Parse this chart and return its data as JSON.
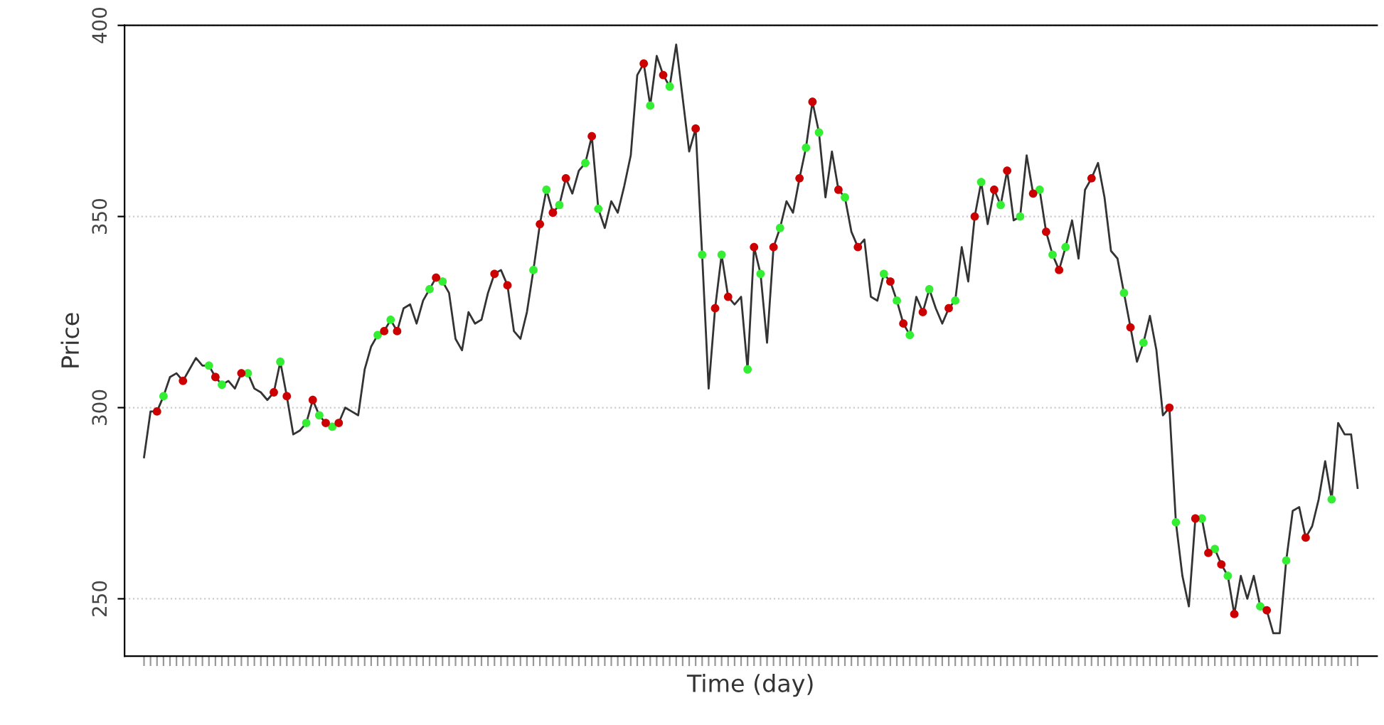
{
  "chart_data": {
    "type": "line",
    "xlabel": "Time (day)",
    "ylabel": "Price",
    "ylim": [
      235,
      400
    ],
    "yticks": [
      250,
      300,
      350,
      400
    ],
    "grid": "y",
    "tick_labels": "y",
    "categories": [
      null,
      null,
      null,
      null,
      null,
      null,
      null,
      null,
      null,
      null,
      null,
      null,
      null,
      null,
      null,
      null,
      null,
      null,
      null,
      null,
      null,
      null,
      null,
      null,
      null,
      null,
      null,
      null,
      null,
      null,
      null,
      null,
      null,
      null,
      null,
      null,
      null,
      null,
      null,
      null,
      null,
      null,
      null,
      null,
      null,
      null,
      null,
      null,
      null,
      null,
      null,
      null,
      null,
      null,
      null,
      null,
      null,
      null,
      null,
      null,
      null,
      null,
      null,
      null,
      null,
      null,
      null,
      null,
      null,
      null,
      null,
      null,
      null,
      null,
      null,
      null,
      null,
      null,
      null,
      null,
      null,
      null,
      null,
      null,
      null,
      null,
      null,
      null,
      null,
      null,
      null,
      null,
      null,
      null,
      null,
      null,
      null,
      null,
      null,
      null,
      null,
      null,
      null,
      null,
      null,
      null,
      null,
      null,
      null,
      null,
      null,
      null,
      null,
      null,
      null,
      null,
      null,
      null,
      null,
      null,
      null,
      null,
      null,
      null,
      null,
      null,
      null,
      null,
      null,
      null,
      null,
      null,
      null,
      null,
      null,
      null,
      null,
      null,
      null,
      null,
      null,
      null,
      null,
      null,
      null,
      null,
      null,
      null,
      null,
      null,
      null,
      null,
      null,
      null,
      null,
      null,
      null,
      null,
      null,
      null,
      null,
      null,
      null,
      null,
      null,
      null,
      null,
      null,
      null,
      null,
      null,
      null,
      null,
      null,
      null,
      null,
      null,
      null,
      null,
      null,
      null,
      null,
      null,
      null,
      null,
      null,
      null,
      null
    ],
    "series": [
      {
        "color": "#333333",
        "line_style": "solid",
        "marker": "none",
        "values": [
          287,
          299,
          299,
          303,
          308,
          309,
          307,
          310,
          313,
          311,
          311,
          308,
          306,
          307,
          305,
          309,
          309,
          305,
          304,
          302,
          304,
          312,
          303,
          293,
          294,
          296,
          302,
          298,
          296,
          295,
          296,
          300,
          299,
          298,
          310,
          316,
          319,
          320,
          323,
          320,
          326,
          327,
          322,
          328,
          331,
          334,
          333,
          330,
          318,
          315,
          325,
          322,
          323,
          330,
          335,
          336,
          332,
          320,
          318,
          325,
          336,
          348,
          357,
          351,
          353,
          360,
          356,
          362,
          364,
          371,
          352,
          347,
          354,
          351,
          358,
          366,
          387,
          390,
          379,
          392,
          387,
          384,
          395,
          381,
          367,
          373,
          340,
          305,
          326,
          340,
          329,
          327,
          329,
          310,
          342,
          335,
          317,
          342,
          347,
          354,
          351,
          360,
          368,
          380,
          372,
          355,
          367,
          357,
          355,
          346,
          342,
          344,
          329,
          328,
          335,
          333,
          328,
          322,
          319,
          329,
          325,
          331,
          326,
          322,
          326,
          328,
          342,
          333,
          350,
          359,
          348,
          357,
          353,
          362,
          349,
          350,
          366,
          356,
          357,
          346,
          340,
          336,
          342,
          349,
          339,
          357,
          360,
          364,
          355,
          341,
          339,
          330,
          321,
          312,
          317,
          324,
          315,
          298,
          300,
          270,
          256,
          248,
          271,
          271,
          262,
          263,
          259,
          256,
          246,
          256,
          250,
          256,
          248,
          247,
          241,
          241,
          260,
          273,
          274,
          266,
          269,
          276,
          286,
          276,
          296,
          293,
          293,
          279
        ]
      },
      {
        "type": "scatter",
        "color": "#33ee33",
        "marker": "circle",
        "values": [
          null,
          null,
          null,
          303,
          null,
          null,
          null,
          null,
          null,
          null,
          311,
          null,
          306,
          null,
          null,
          null,
          309,
          null,
          null,
          null,
          null,
          312,
          null,
          null,
          null,
          296,
          null,
          298,
          null,
          295,
          null,
          null,
          null,
          null,
          null,
          null,
          319,
          null,
          323,
          null,
          null,
          null,
          null,
          null,
          331,
          null,
          333,
          null,
          null,
          null,
          null,
          null,
          null,
          null,
          null,
          null,
          null,
          null,
          null,
          null,
          336,
          null,
          357,
          null,
          353,
          null,
          null,
          null,
          364,
          null,
          352,
          null,
          null,
          null,
          null,
          null,
          null,
          null,
          379,
          null,
          null,
          384,
          null,
          null,
          null,
          null,
          340,
          null,
          null,
          340,
          null,
          null,
          null,
          310,
          null,
          335,
          null,
          null,
          347,
          null,
          null,
          null,
          368,
          null,
          372,
          null,
          null,
          null,
          355,
          null,
          null,
          null,
          null,
          null,
          335,
          null,
          328,
          null,
          319,
          null,
          null,
          331,
          null,
          null,
          null,
          328,
          null,
          null,
          null,
          359,
          null,
          null,
          353,
          null,
          null,
          350,
          null,
          null,
          357,
          null,
          340,
          null,
          342,
          null,
          null,
          null,
          null,
          null,
          null,
          null,
          null,
          330,
          null,
          null,
          317,
          null,
          null,
          null,
          null,
          270,
          null,
          null,
          null,
          271,
          null,
          263,
          null,
          256,
          null,
          null,
          null,
          null,
          248,
          null,
          null,
          null,
          260,
          null,
          null,
          null,
          null,
          null,
          null,
          276,
          null,
          null,
          null,
          null
        ]
      },
      {
        "type": "scatter",
        "color": "#cc0000",
        "marker": "circle",
        "values": [
          null,
          null,
          299,
          null,
          null,
          null,
          307,
          null,
          null,
          null,
          null,
          308,
          null,
          null,
          null,
          309,
          null,
          null,
          null,
          null,
          304,
          null,
          303,
          null,
          null,
          null,
          302,
          null,
          296,
          null,
          296,
          null,
          null,
          null,
          null,
          null,
          null,
          320,
          null,
          320,
          null,
          null,
          null,
          null,
          null,
          334,
          null,
          null,
          null,
          null,
          null,
          null,
          null,
          null,
          335,
          null,
          332,
          null,
          null,
          null,
          null,
          348,
          null,
          351,
          null,
          360,
          null,
          null,
          null,
          371,
          null,
          null,
          null,
          null,
          null,
          null,
          null,
          390,
          null,
          null,
          387,
          null,
          null,
          null,
          null,
          373,
          null,
          null,
          326,
          null,
          329,
          null,
          null,
          null,
          342,
          null,
          null,
          342,
          null,
          null,
          null,
          360,
          null,
          380,
          null,
          null,
          null,
          357,
          null,
          null,
          342,
          null,
          null,
          null,
          null,
          333,
          null,
          322,
          null,
          null,
          325,
          null,
          null,
          null,
          326,
          null,
          null,
          null,
          350,
          null,
          null,
          357,
          null,
          362,
          null,
          null,
          null,
          356,
          null,
          346,
          null,
          336,
          null,
          null,
          null,
          null,
          360,
          null,
          null,
          null,
          null,
          null,
          321,
          null,
          null,
          null,
          null,
          null,
          300,
          null,
          null,
          null,
          271,
          null,
          262,
          null,
          259,
          null,
          246,
          null,
          null,
          null,
          null,
          247,
          null,
          null,
          null,
          null,
          null,
          266,
          null,
          null,
          null,
          null,
          null,
          null,
          null,
          null
        ]
      }
    ]
  }
}
